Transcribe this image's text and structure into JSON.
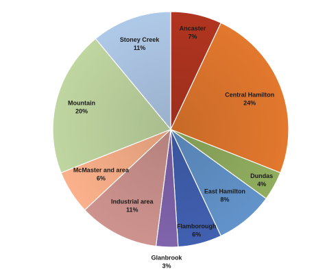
{
  "chart_data": {
    "type": "pie",
    "title": "",
    "slices": [
      {
        "label": "Ancaster",
        "value": 7,
        "value_label": "7%",
        "color": "#a9321e"
      },
      {
        "label": "Central Hamilton",
        "value": 24,
        "value_label": "24%",
        "color": "#d8722c"
      },
      {
        "label": "Dundas",
        "value": 4,
        "value_label": "4%",
        "color": "#8aa65a"
      },
      {
        "label": "East Hamilton",
        "value": 8,
        "value_label": "8%",
        "color": "#5d8cc0"
      },
      {
        "label": "Flamborough",
        "value": 6,
        "value_label": "6%",
        "color": "#3e5ba9"
      },
      {
        "label": "Glanbrook",
        "value": 3,
        "value_label": "3%",
        "color": "#7a5fa4"
      },
      {
        "label": "Industrial area",
        "value": 11,
        "value_label": "11%",
        "color": "#c48c88"
      },
      {
        "label": "McMaster and area",
        "value": 6,
        "value_label": "6%",
        "color": "#efa984"
      },
      {
        "label": "Mountain",
        "value": 20,
        "value_label": "20%",
        "color": "#b7cc99"
      },
      {
        "label": "Stoney Creek",
        "value": 11,
        "value_label": "11%",
        "color": "#a7bfdd"
      }
    ],
    "start_angle_deg": 0,
    "direction": "clockwise",
    "legend": "none"
  }
}
